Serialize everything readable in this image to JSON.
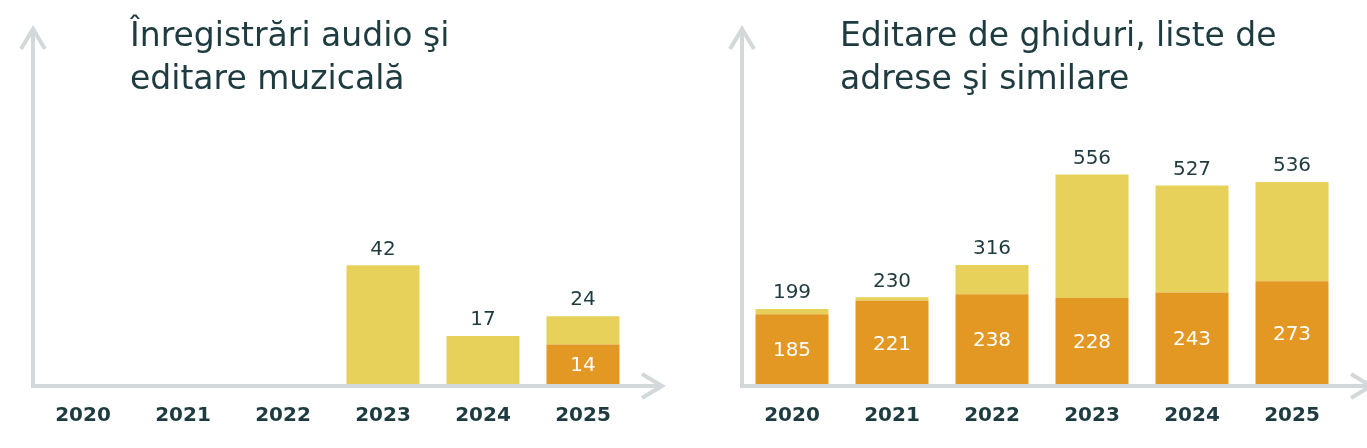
{
  "chart_data": [
    {
      "type": "bar",
      "title": "Înregistrări audio şi editare muzicală",
      "categories": [
        "2020",
        "2021",
        "2022",
        "2023",
        "2024",
        "2025"
      ],
      "stacked": true,
      "legend": false,
      "grid": false,
      "tick_labels": "x",
      "series": [
        {
          "color": "#e39824",
          "values": [
            null,
            null,
            null,
            null,
            null,
            14
          ],
          "value_labels": [
            null,
            null,
            null,
            null,
            null,
            "14"
          ]
        },
        {
          "color": "#e7d15a",
          "values": [
            null,
            null,
            null,
            42,
            17,
            10
          ]
        }
      ],
      "totals": [
        null,
        null,
        null,
        "42",
        "17",
        "24"
      ]
    },
    {
      "type": "bar",
      "title": "Editare de ghiduri, liste de adrese şi similare",
      "categories": [
        "2020",
        "2021",
        "2022",
        "2023",
        "2024",
        "2025"
      ],
      "stacked": true,
      "legend": false,
      "grid": false,
      "tick_labels": "x",
      "series": [
        {
          "color": "#e39824",
          "values": [
            185,
            221,
            238,
            228,
            243,
            273
          ],
          "value_labels": [
            "185",
            "221",
            "238",
            "228",
            "243",
            "273"
          ]
        },
        {
          "color": "#e7d15a",
          "values": [
            14,
            9,
            78,
            328,
            284,
            263
          ]
        }
      ],
      "totals": [
        "199",
        "230",
        "316",
        "556",
        "527",
        "536"
      ]
    }
  ]
}
